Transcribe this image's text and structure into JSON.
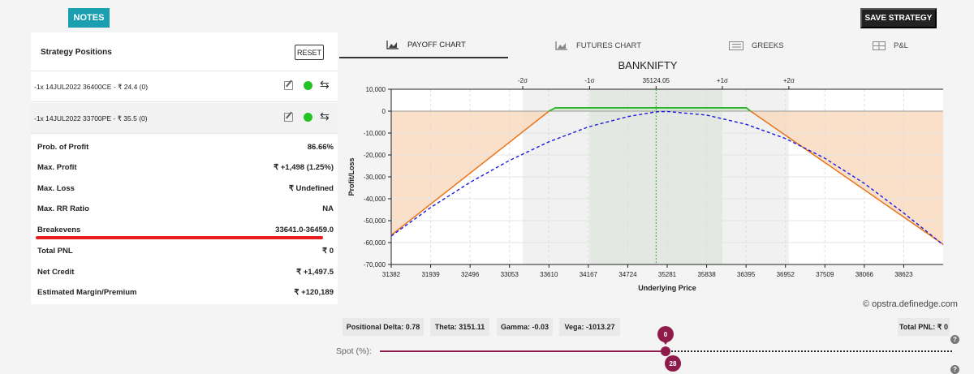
{
  "topbar": {
    "notes_label": "NOTES",
    "save_label": "SAVE STRATEGY"
  },
  "positions_panel": {
    "title": "Strategy Positions",
    "reset_label": "RESET",
    "positions": [
      {
        "text": "-1x  14JUL2022  36400CE  - ₹ 24.4   (0)"
      },
      {
        "text": "-1x  14JUL2022  33700PE  - ₹ 35.5   (0)"
      }
    ],
    "stats": [
      {
        "label": "Prob. of Profit",
        "value": "86.66%"
      },
      {
        "label": "Max. Profit",
        "value": "₹ +1,498 (1.25%)"
      },
      {
        "label": "Max. Loss",
        "value": "₹ Undefined"
      },
      {
        "label": "Max. RR Ratio",
        "value": "NA"
      },
      {
        "label": "Breakevens",
        "value": "33641.0-36459.0"
      },
      {
        "label": "Total PNL",
        "value": "₹ 0"
      },
      {
        "label": "Net Credit",
        "value": "₹ +1,497.5"
      },
      {
        "label": "Estimated Margin/Premium",
        "value": "₹ +120,189"
      }
    ],
    "status_color": "#22c322",
    "highlight_color": "#e81d1d"
  },
  "tabs": [
    {
      "label": "PAYOFF CHART",
      "icon": "area-chart-icon"
    },
    {
      "label": "FUTURES CHART",
      "icon": "area-chart-icon"
    },
    {
      "label": "GREEKS",
      "icon": "list-icon"
    },
    {
      "label": "P&L",
      "icon": "table-icon"
    }
  ],
  "chart_data": {
    "type": "line",
    "title": "BANKNIFTY",
    "xlabel": "Underlying Price",
    "ylabel": "Profit/Loss",
    "xlim": [
      31382,
      39180
    ],
    "ylim": [
      -70000,
      10000
    ],
    "x_ticks": [
      31382,
      31939,
      32496,
      33053,
      33610,
      34167,
      34724,
      35281,
      35838,
      36395,
      36952,
      37509,
      38066,
      38623
    ],
    "y_ticks": [
      10000,
      0,
      -10000,
      -20000,
      -30000,
      -40000,
      -50000,
      -60000,
      -70000
    ],
    "y_tick_labels": [
      "10,000",
      "0",
      "-10,000",
      "-20,000",
      "-30,000",
      "-40,000",
      "-50,000",
      "-60,000",
      "-70,000"
    ],
    "top_axis_ticks": [
      {
        "label": "-2σ",
        "x": 33240
      },
      {
        "label": "-1σ",
        "x": 34185
      },
      {
        "label": "35124.05",
        "x": 35124.05
      },
      {
        "label": "+1σ",
        "x": 36060
      },
      {
        "label": "+2σ",
        "x": 37000
      }
    ],
    "sigma_bands": {
      "two_sigma": [
        33240,
        37000
      ],
      "one_sigma": [
        34185,
        36060
      ]
    },
    "spot": 35124.05,
    "series": [
      {
        "style": "solid",
        "color_profit": "#2fb32f",
        "color_loss": "#e8751a",
        "points": [
          [
            31382,
            -56600
          ],
          [
            33610,
            -40
          ],
          [
            33700,
            1498
          ],
          [
            36400,
            1498
          ],
          [
            36459,
            0
          ],
          [
            39180,
            -60800
          ]
        ]
      },
      {
        "style": "dashed",
        "color": "#1a1ae0",
        "points": [
          [
            31382,
            -57000
          ],
          [
            31939,
            -44000
          ],
          [
            32496,
            -32500
          ],
          [
            33053,
            -22500
          ],
          [
            33610,
            -14000
          ],
          [
            34167,
            -7200
          ],
          [
            34724,
            -2500
          ],
          [
            35124,
            -300
          ],
          [
            35281,
            -150
          ],
          [
            35838,
            -1800
          ],
          [
            36395,
            -6000
          ],
          [
            36952,
            -12500
          ],
          [
            37509,
            -21500
          ],
          [
            38066,
            -33000
          ],
          [
            38623,
            -46500
          ],
          [
            39180,
            -61000
          ]
        ]
      }
    ],
    "loss_fill_color": "#f9d9c0",
    "profit_fill_color": "#d7ebd3"
  },
  "greeks": {
    "delta": "Positional Delta: 0.78",
    "theta": "Theta: 3151.11",
    "gamma": "Gamma: -0.03",
    "vega": "Vega: -1013.27",
    "total_pnl": "Total PNL: ₹ 0"
  },
  "watermark": "© opstra.definedge.com",
  "spot_slider": {
    "label": "Spot (%):",
    "value_top": "0",
    "value_bottom": "28"
  }
}
